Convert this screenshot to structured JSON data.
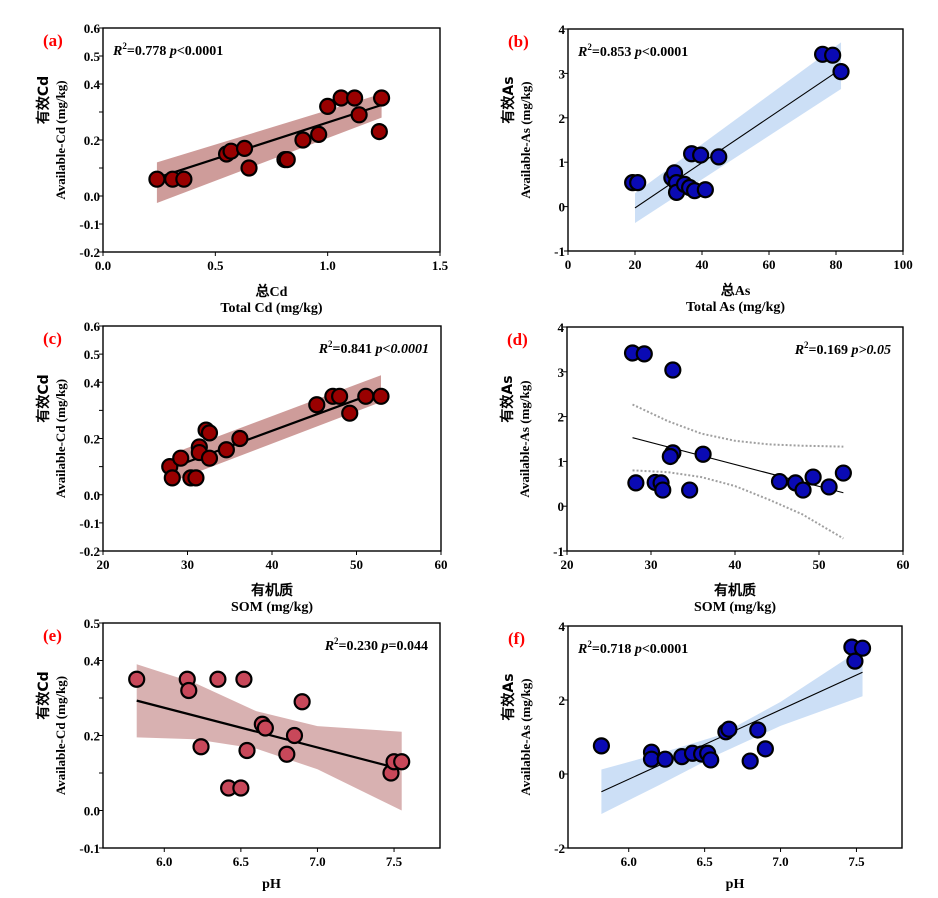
{
  "panel_label_color": "#ff0000",
  "chart_data": [
    {
      "id": "a",
      "type": "scatter",
      "panel_label": "(a)",
      "stat": {
        "r2_prefix": "R",
        "r2_text": "=0.778 ",
        "p_italic": "p",
        "p_text": "<0.0001",
        "italic_all": false,
        "position": "top-left"
      },
      "xlabel_cn": "总Cd",
      "xlabel": "Total Cd (mg/kg)",
      "ylabel_cn": "有效Cd",
      "ylabel": "Available-Cd (mg/kg)",
      "xlim": [
        0.0,
        1.5
      ],
      "ylim": [
        -0.2,
        0.6
      ],
      "xticks": [
        0.0,
        0.5,
        1.0,
        1.5
      ],
      "xtick_labels": [
        "0.0",
        "0.5",
        "1.0",
        "1.5"
      ],
      "yticks": [
        -0.2,
        -0.1,
        0.0,
        0.1,
        0.2,
        0.3,
        0.4,
        0.5,
        0.6
      ],
      "ytick_labels": [
        "-0.2",
        "-0.1",
        "0.0",
        "",
        "0.2",
        "",
        "0.4",
        "0.5",
        "0.6"
      ],
      "point_color": "#990000",
      "band_color": "#c9918f",
      "band_style": "filled",
      "line_width_style": "thick",
      "fit": {
        "x0": 0.24,
        "y0": 0.065,
        "x1": 1.24,
        "y1": 0.325
      },
      "band": {
        "lower": [
          [
            0.24,
            -0.025
          ],
          [
            1.24,
            0.28
          ]
        ],
        "upper": [
          [
            0.24,
            0.12
          ],
          [
            1.24,
            0.365
          ]
        ]
      },
      "x": [
        0.24,
        0.31,
        0.36,
        0.55,
        0.57,
        0.63,
        0.65,
        0.81,
        0.82,
        0.89,
        0.96,
        1.0,
        1.06,
        1.12,
        1.14,
        1.24,
        1.23
      ],
      "y": [
        0.06,
        0.06,
        0.06,
        0.15,
        0.16,
        0.17,
        0.1,
        0.13,
        0.13,
        0.2,
        0.22,
        0.32,
        0.35,
        0.35,
        0.29,
        0.35,
        0.23
      ]
    },
    {
      "id": "b",
      "type": "scatter",
      "panel_label": "(b)",
      "stat": {
        "r2_prefix": "R",
        "r2_text": "=0.853 ",
        "p_italic": "p",
        "p_text": "<0.0001",
        "italic_all": false,
        "position": "top-left"
      },
      "xlabel_cn": "总As",
      "xlabel": "Total As (mg/kg)",
      "ylabel_cn": "有效As",
      "ylabel": "Available-As (mg/kg)",
      "xlim": [
        0,
        100
      ],
      "ylim": [
        -1,
        4
      ],
      "xticks": [
        0,
        20,
        40,
        60,
        80,
        100
      ],
      "xtick_labels": [
        "0",
        "20",
        "40",
        "60",
        "80",
        "100"
      ],
      "yticks": [
        -1,
        0,
        1,
        2,
        3,
        4
      ],
      "ytick_labels": [
        "-1",
        "0",
        "1",
        "2",
        "3",
        "4"
      ],
      "point_color": "#0a0ab4",
      "band_color": "#c6dcf5",
      "band_style": "filled",
      "line_width_style": "thin",
      "fit": {
        "x0": 20,
        "y0": -0.03,
        "x1": 81.5,
        "y1": 3.1
      },
      "band": {
        "lower": [
          [
            20,
            -0.37
          ],
          [
            81.5,
            2.65
          ]
        ],
        "upper": [
          [
            20,
            0.3
          ],
          [
            81.5,
            3.7
          ]
        ]
      },
      "x": [
        19.3,
        20.8,
        31.0,
        31.8,
        32.4,
        32.4,
        34.8,
        36.3,
        36.9,
        37.8,
        39.6,
        41.0,
        45.0,
        76.0,
        79.0,
        81.5
      ],
      "y": [
        0.54,
        0.54,
        0.65,
        0.76,
        0.54,
        0.32,
        0.5,
        0.43,
        1.19,
        0.36,
        1.16,
        0.38,
        1.12,
        3.43,
        3.41,
        3.04
      ]
    },
    {
      "id": "c",
      "type": "scatter",
      "panel_label": "(c)",
      "stat": {
        "r2_prefix": "R",
        "r2_text": "=0.841  ",
        "p_italic": "p<0.0001",
        "p_text": "",
        "italic_all": false,
        "position": "top-right"
      },
      "xlabel_cn": "有机质",
      "xlabel": "SOM (mg/kg)",
      "ylabel_cn": "有效Cd",
      "ylabel": "Available-Cd (mg/kg)",
      "xlim": [
        20,
        60
      ],
      "ylim": [
        -0.2,
        0.6
      ],
      "xticks": [
        20,
        30,
        40,
        50,
        60
      ],
      "xtick_labels": [
        "20",
        "30",
        "40",
        "50",
        "60"
      ],
      "yticks": [
        -0.2,
        -0.1,
        0.0,
        0.1,
        0.2,
        0.3,
        0.4,
        0.5,
        0.6
      ],
      "ytick_labels": [
        "-0.2",
        "-0.1",
        "0.0",
        "",
        "0.2",
        "",
        "0.4",
        "0.5",
        "0.6"
      ],
      "point_color": "#990000",
      "band_color": "#c9918f",
      "band_style": "filled",
      "line_width_style": "thick",
      "fit": {
        "x0": 28.5,
        "y0": 0.1,
        "x1": 52.9,
        "y1": 0.37
      },
      "band": {
        "lower": [
          [
            28.5,
            0.05
          ],
          [
            52.9,
            0.33
          ]
        ],
        "upper": [
          [
            28.5,
            0.15
          ],
          [
            52.9,
            0.425
          ]
        ]
      },
      "x": [
        27.9,
        28.2,
        29.2,
        30.4,
        31.0,
        31.4,
        31.4,
        32.2,
        32.6,
        32.6,
        34.6,
        36.2,
        45.3,
        47.2,
        48.0,
        49.2,
        51.1,
        52.9
      ],
      "y": [
        0.1,
        0.06,
        0.13,
        0.06,
        0.06,
        0.17,
        0.15,
        0.23,
        0.22,
        0.13,
        0.16,
        0.2,
        0.32,
        0.35,
        0.35,
        0.29,
        0.35,
        0.35
      ]
    },
    {
      "id": "d",
      "type": "scatter",
      "panel_label": "(d)",
      "stat": {
        "r2_prefix": "R",
        "r2_text": "=0.169  ",
        "p_italic": "p>0.05",
        "p_text": "",
        "italic_all": false,
        "position": "top-right"
      },
      "xlabel_cn": "有机质",
      "xlabel": "SOM (mg/kg)",
      "ylabel_cn": "有效As",
      "ylabel": "Available-As (mg/kg)",
      "xlim": [
        20,
        60
      ],
      "ylim": [
        -1,
        4
      ],
      "xticks": [
        20,
        30,
        40,
        50,
        60
      ],
      "xtick_labels": [
        "20",
        "30",
        "40",
        "50",
        "60"
      ],
      "yticks": [
        -1,
        0,
        1,
        2,
        3,
        4
      ],
      "ytick_labels": [
        "-1",
        "0",
        "1",
        "2",
        "3",
        "4"
      ],
      "point_color": "#0a0ab4",
      "band_color": "#a0a0a0",
      "band_style": "dotted",
      "line_width_style": "thin",
      "fit": {
        "x0": 27.8,
        "y0": 1.53,
        "x1": 52.9,
        "y1": 0.3
      },
      "band": {
        "lower": [
          [
            27.8,
            0.8
          ],
          [
            32,
            0.76
          ],
          [
            36,
            0.65
          ],
          [
            40,
            0.45
          ],
          [
            44,
            0.15
          ],
          [
            48,
            -0.18
          ],
          [
            52.9,
            -0.72
          ]
        ],
        "upper": [
          [
            27.8,
            2.27
          ],
          [
            32,
            1.9
          ],
          [
            36,
            1.62
          ],
          [
            40,
            1.46
          ],
          [
            44,
            1.38
          ],
          [
            48,
            1.35
          ],
          [
            52.9,
            1.33
          ]
        ]
      },
      "x": [
        27.8,
        29.2,
        32.6,
        32.6,
        32.3,
        36.2,
        28.2,
        30.5,
        31.2,
        31.4,
        34.6,
        45.3,
        47.2,
        48.1,
        49.3,
        51.2,
        52.9
      ],
      "y": [
        3.42,
        3.4,
        3.04,
        1.19,
        1.11,
        1.16,
        0.52,
        0.53,
        0.52,
        0.36,
        0.36,
        0.55,
        0.52,
        0.36,
        0.65,
        0.43,
        0.74
      ]
    },
    {
      "id": "e",
      "type": "scatter",
      "panel_label": "(e)",
      "stat": {
        "r2_prefix": "R",
        "r2_text": "=0.230  ",
        "p_italic": "p",
        "p_text": "=0.044",
        "italic_all": false,
        "position": "top-right"
      },
      "xlabel_cn": "",
      "xlabel": "pH",
      "ylabel_cn": "有效Cd",
      "ylabel": "Available-Cd (mg/kg)",
      "xlim": [
        5.6,
        7.8
      ],
      "ylim": [
        -0.1,
        0.5
      ],
      "xticks": [
        6.0,
        6.5,
        7.0,
        7.5
      ],
      "xtick_labels": [
        "6.0",
        "6.5",
        "7.0",
        "7.5"
      ],
      "yticks": [
        -0.1,
        0.0,
        0.1,
        0.2,
        0.3,
        0.4,
        0.5
      ],
      "ytick_labels": [
        "-0.1",
        "0.0",
        "",
        "0.2",
        "",
        "0.4",
        "0.5"
      ],
      "point_color": "#c8485a",
      "band_color": "#d4a9a9",
      "band_style": "filled",
      "line_width_style": "thick",
      "fit": {
        "x0": 5.82,
        "y0": 0.293,
        "x1": 7.5,
        "y1": 0.115
      },
      "band": {
        "lower": [
          [
            5.82,
            0.195
          ],
          [
            6.2,
            0.19
          ],
          [
            6.6,
            0.165
          ],
          [
            7.0,
            0.11
          ],
          [
            7.55,
            0.0
          ]
        ],
        "upper": [
          [
            5.82,
            0.39
          ],
          [
            6.2,
            0.34
          ],
          [
            6.6,
            0.265
          ],
          [
            7.0,
            0.225
          ],
          [
            7.55,
            0.21
          ]
        ]
      },
      "x": [
        5.82,
        6.15,
        6.16,
        6.24,
        6.35,
        6.42,
        6.5,
        6.52,
        6.54,
        6.64,
        6.66,
        6.8,
        6.85,
        6.9,
        7.48,
        7.5,
        7.55
      ],
      "y": [
        0.35,
        0.35,
        0.32,
        0.17,
        0.35,
        0.06,
        0.06,
        0.35,
        0.16,
        0.23,
        0.22,
        0.15,
        0.2,
        0.29,
        0.1,
        0.13,
        0.13
      ]
    },
    {
      "id": "f",
      "type": "scatter",
      "panel_label": "(f)",
      "stat": {
        "r2_prefix": "R",
        "r2_text": "=0.718 ",
        "p_italic": "p",
        "p_text": "<0.0001",
        "italic_all": false,
        "position": "top-left"
      },
      "xlabel_cn": "",
      "xlabel": "pH",
      "ylabel_cn": "有效As",
      "ylabel": "Available-As (mg/kg)",
      "xlim": [
        5.6,
        7.8
      ],
      "ylim": [
        -2,
        4
      ],
      "xticks": [
        6.0,
        6.5,
        7.0,
        7.5
      ],
      "xtick_labels": [
        "6.0",
        "6.5",
        "7.0",
        "7.5"
      ],
      "yticks": [
        -2,
        0,
        2,
        4
      ],
      "ytick_labels": [
        "-2",
        "0",
        "2",
        "4"
      ],
      "point_color": "#0a0ab4",
      "band_color": "#c6dcf5",
      "band_style": "filled",
      "line_width_style": "thin",
      "fit": {
        "x0": 5.82,
        "y0": -0.48,
        "x1": 7.54,
        "y1": 2.75
      },
      "band": {
        "lower": [
          [
            5.82,
            -1.08
          ],
          [
            6.2,
            -0.3
          ],
          [
            6.6,
            0.55
          ],
          [
            7.0,
            1.3
          ],
          [
            7.54,
            2.1
          ]
        ],
        "upper": [
          [
            5.82,
            0.12
          ],
          [
            6.2,
            0.55
          ],
          [
            6.6,
            1.05
          ],
          [
            7.0,
            1.95
          ],
          [
            7.54,
            3.4
          ]
        ]
      },
      "x": [
        5.82,
        6.15,
        6.15,
        6.24,
        6.35,
        6.42,
        6.48,
        6.52,
        6.54,
        6.64,
        6.66,
        6.8,
        6.85,
        6.9,
        7.47,
        7.54,
        7.49
      ],
      "y": [
        0.76,
        0.59,
        0.4,
        0.4,
        0.47,
        0.56,
        0.54,
        0.56,
        0.38,
        1.14,
        1.21,
        0.35,
        1.19,
        0.68,
        3.43,
        3.4,
        3.05
      ]
    }
  ]
}
